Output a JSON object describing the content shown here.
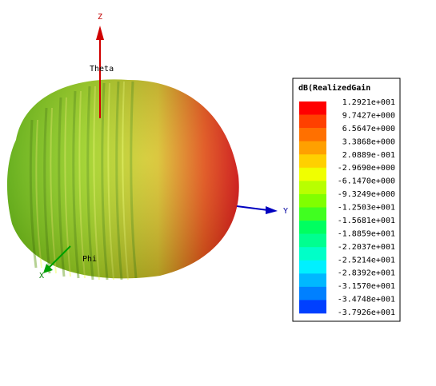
{
  "axes": {
    "z": "Z",
    "y": "Y",
    "x": "X",
    "theta": "Theta",
    "phi": "Phi"
  },
  "legend": {
    "title": "dB(RealizedGain",
    "labels": [
      "1.2921e+001",
      "9.7427e+000",
      "6.5647e+000",
      "3.3868e+000",
      "2.0889e-001",
      "-2.9690e+000",
      "-6.1470e+000",
      "-9.3249e+000",
      "-1.2503e+001",
      "-1.5681e+001",
      "-1.8859e+001",
      "-2.2037e+001",
      "-2.5214e+001",
      "-2.8392e+001",
      "-3.1570e+001",
      "-3.4748e+001",
      "-3.7926e+001"
    ],
    "colors": [
      "#ff0000",
      "#ff4000",
      "#ff7000",
      "#ffa000",
      "#ffd000",
      "#f0ff00",
      "#b8ff00",
      "#80ff00",
      "#40ff20",
      "#00ff60",
      "#00ff90",
      "#00ffc8",
      "#00f0ff",
      "#00b8ff",
      "#0080ff",
      "#0040ff"
    ]
  }
}
